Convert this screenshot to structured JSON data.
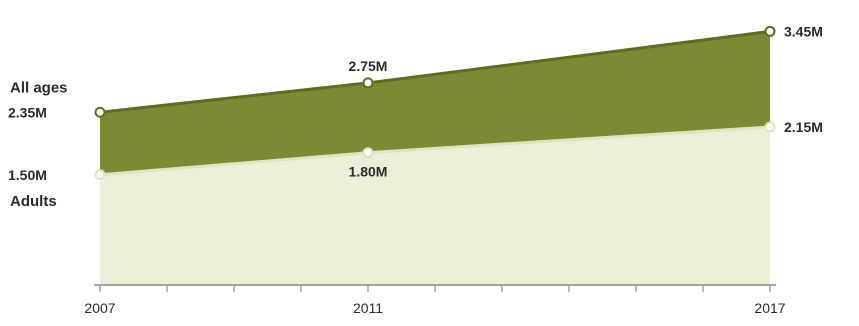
{
  "chart_data": {
    "type": "area",
    "x": [
      2007,
      2011,
      2017
    ],
    "xlim": [
      2007,
      2017
    ],
    "ylim": [
      0,
      3.8
    ],
    "unit": "M",
    "series": [
      {
        "name": "All ages",
        "values": [
          2.35,
          2.75,
          3.45
        ],
        "labels": [
          "2.35M",
          "2.75M",
          "3.45M"
        ],
        "color": "#7b8a34"
      },
      {
        "name": "Adults",
        "values": [
          1.5,
          1.8,
          2.15
        ],
        "labels": [
          "1.50M",
          "1.80M",
          "2.15M"
        ],
        "color": "#ecefd8"
      }
    ],
    "x_ticks": [
      "2007",
      "2011",
      "2017"
    ],
    "grid": false,
    "legend": "inline-left"
  },
  "colors": {
    "top_area": "#7b8a34",
    "top_line": "#5f6d24",
    "bottom_area": "#ecefd8",
    "bottom_line": "#dfe3bf",
    "axis": "#8a8a8a",
    "text": "#2b2b2b"
  }
}
